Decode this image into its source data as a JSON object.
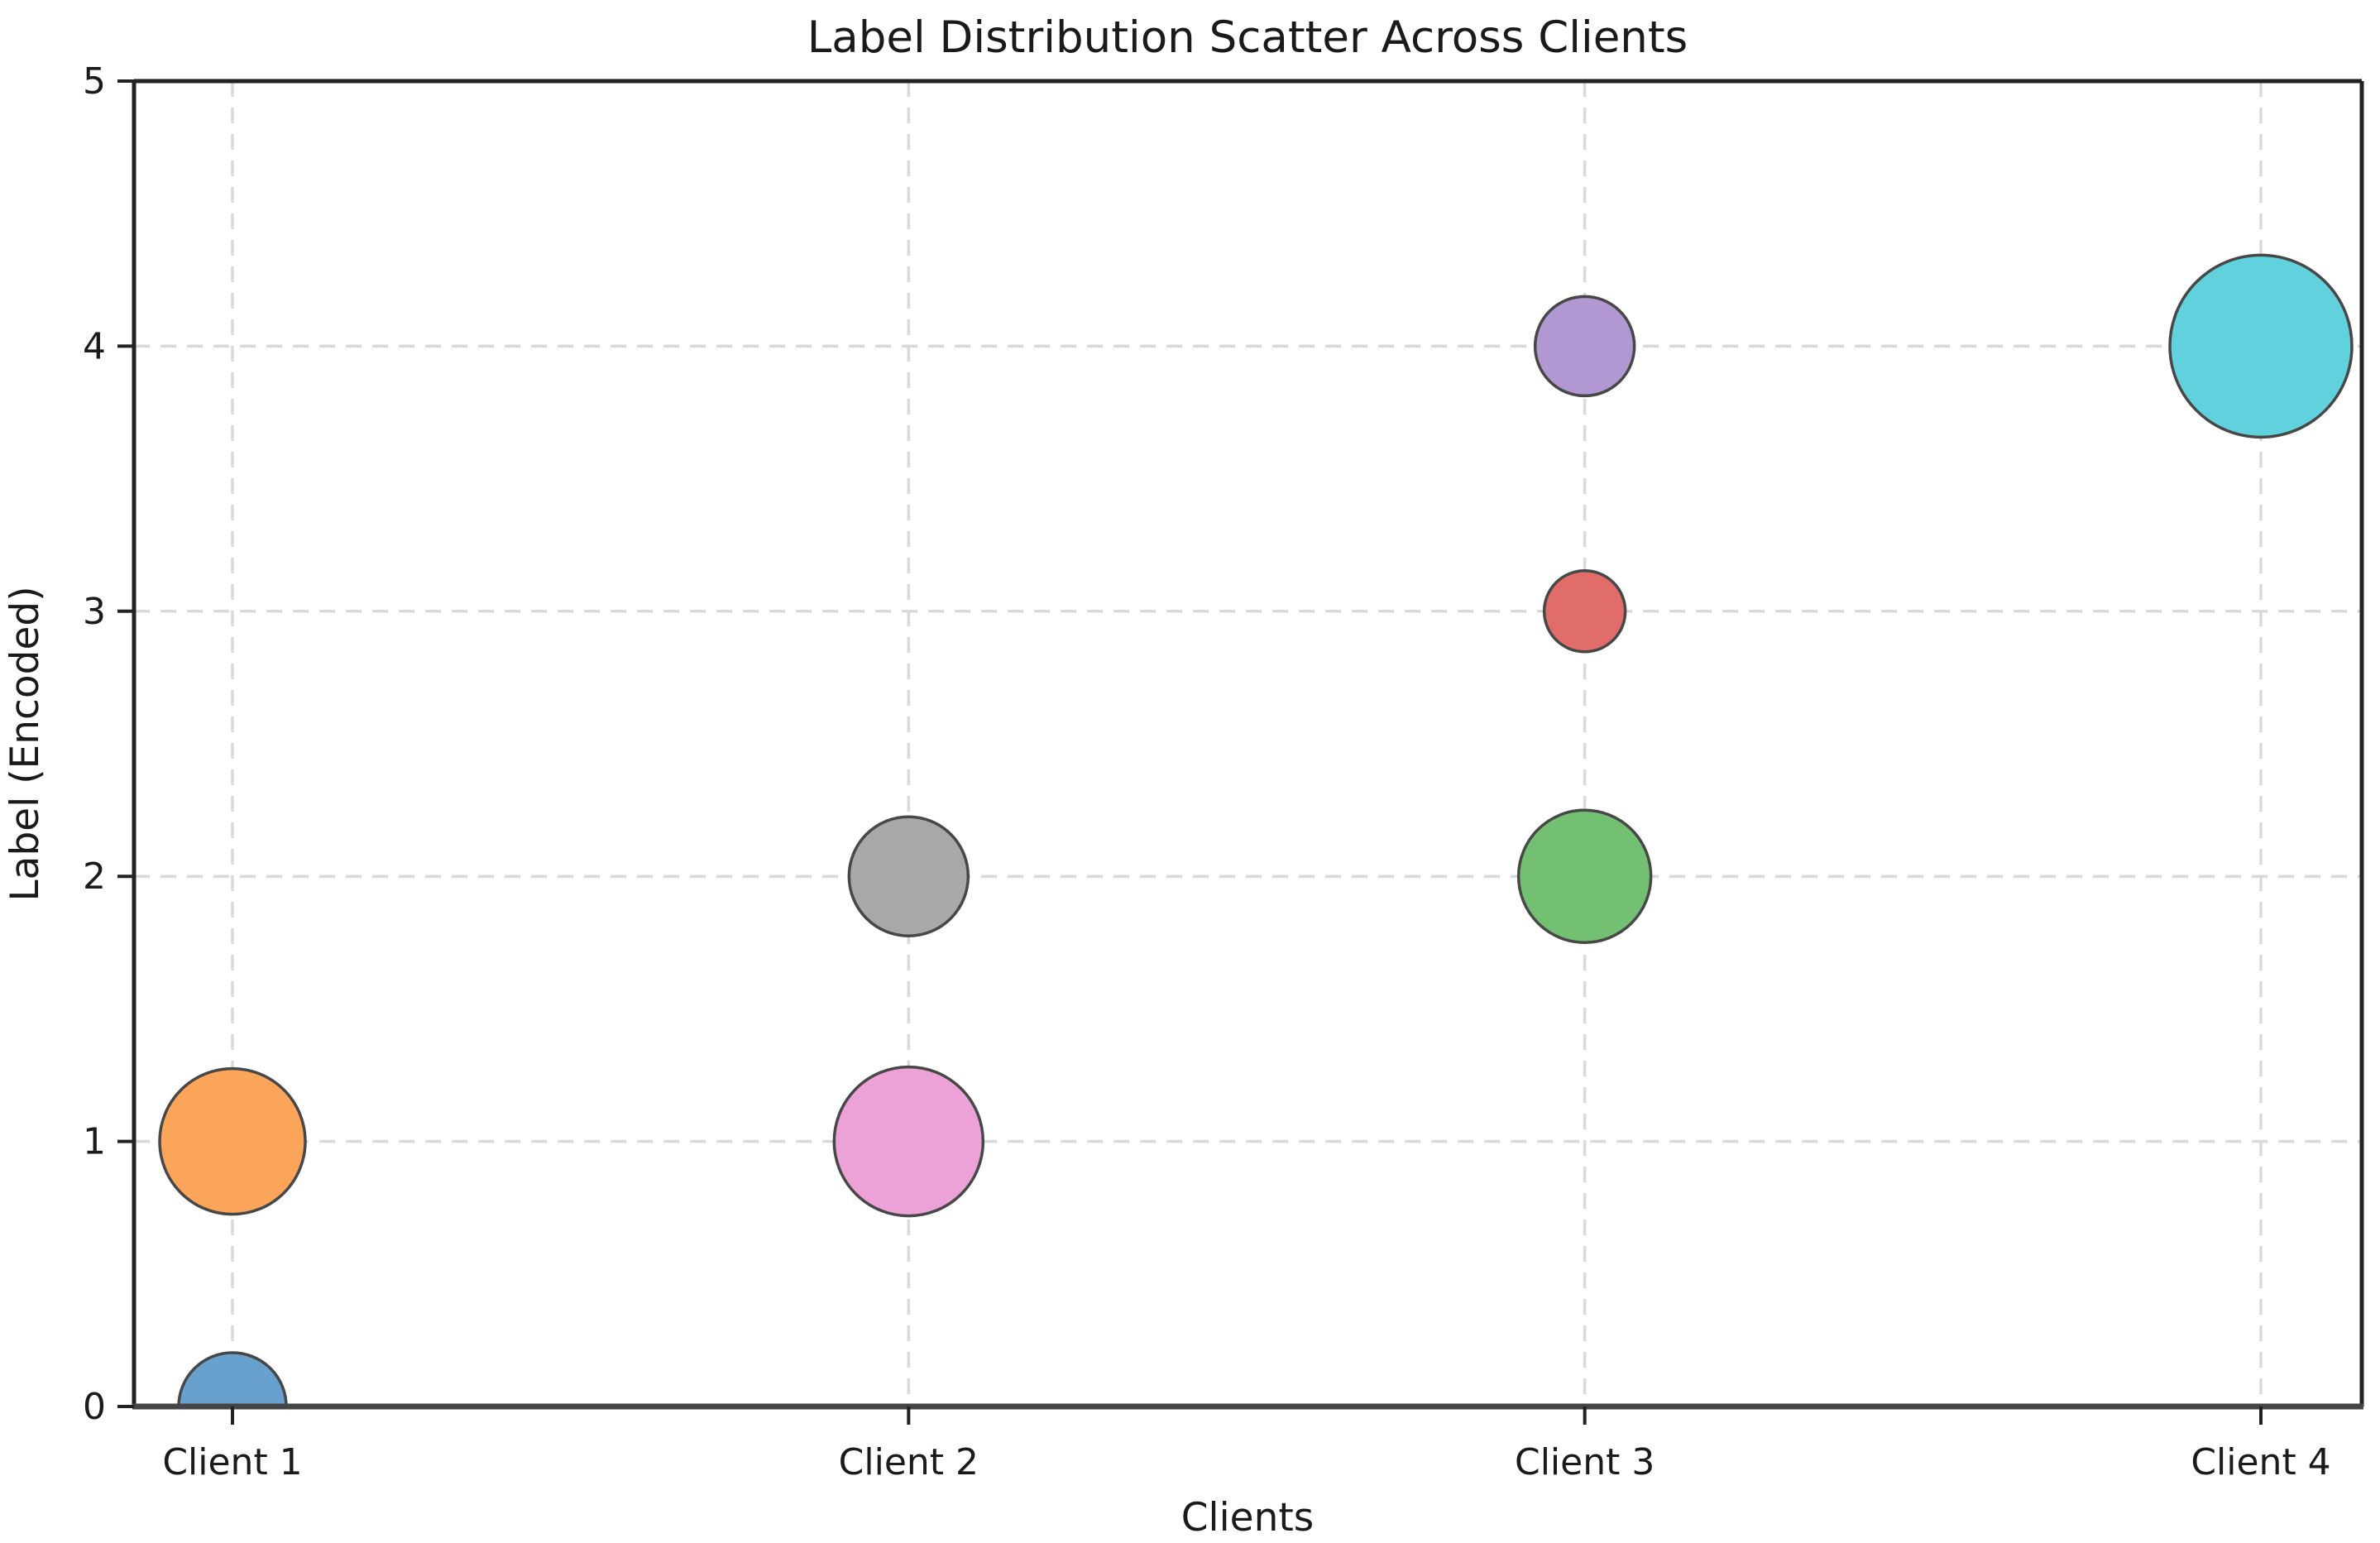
{
  "chart_data": {
    "type": "scatter",
    "title": "Label Distribution Scatter Across Clients",
    "xlabel": "Clients",
    "ylabel": "Label (Encoded)",
    "categories": [
      "Client 1",
      "Client 2",
      "Client 3",
      "Client 4"
    ],
    "ylim": [
      0,
      5
    ],
    "yticks": [
      0,
      1,
      2,
      3,
      4,
      5
    ],
    "grid": {
      "visible": true,
      "line_style": "dashed",
      "color": "#d9d9d9"
    },
    "legend_position": "none",
    "background_color": "#ffffff",
    "text_color": "#1a1a1a",
    "marker_edge_color": "#474747",
    "points": [
      {
        "category": "Client 1",
        "x": 0,
        "y": 0,
        "color": "#68a1cd",
        "radius_px": 65
      },
      {
        "category": "Client 1",
        "x": 0,
        "y": 1,
        "color": "#fba55a",
        "radius_px": 88
      },
      {
        "category": "Client 2",
        "x": 1,
        "y": 1,
        "color": "#eda2d7",
        "radius_px": 90
      },
      {
        "category": "Client 2",
        "x": 1,
        "y": 2,
        "color": "#a8a8a8",
        "radius_px": 72
      },
      {
        "category": "Client 3",
        "x": 2,
        "y": 2,
        "color": "#73c073",
        "radius_px": 80
      },
      {
        "category": "Client 3",
        "x": 2,
        "y": 3,
        "color": "#e16d6b",
        "radius_px": 49
      },
      {
        "category": "Client 3",
        "x": 2,
        "y": 4,
        "color": "#b298d3",
        "radius_px": 60
      },
      {
        "category": "Client 4",
        "x": 3,
        "y": 4,
        "color": "#60d1dd",
        "radius_px": 110
      }
    ]
  }
}
